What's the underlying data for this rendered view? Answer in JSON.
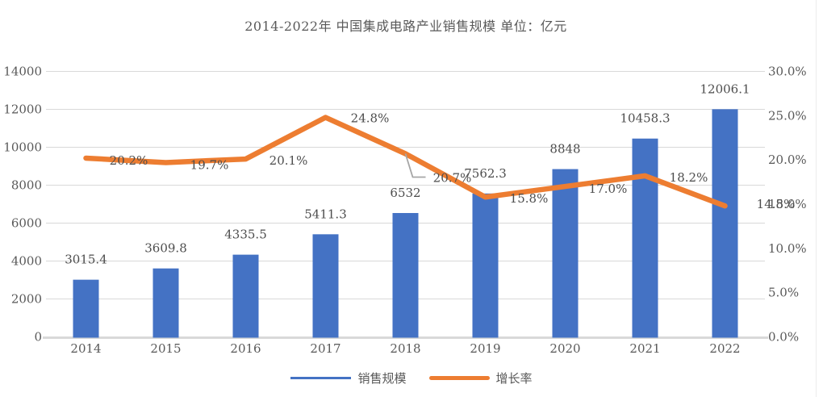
{
  "title": "2014-2022年 中国集成电路产业销售规模 单位：亿元",
  "legend": {
    "items": [
      {
        "label": "销售规模",
        "color": "#4472C4",
        "marker": "thin-line"
      },
      {
        "label": "增长率",
        "color": "#ED7D31",
        "marker": "thick-line"
      }
    ],
    "position": "bottom"
  },
  "colors": {
    "bar": "#4472C4",
    "line": "#ED7D31",
    "grid": "#d9d9d9",
    "axis_line": "#d9d9d9",
    "axis_text": "#595959",
    "data_label_text": "#4d4d4d",
    "leader_line": "#a6a6a6",
    "background": "#ffffff"
  },
  "chart_data": {
    "type": "bar+line combo",
    "title": "2014-2022年 中国集成电路产业销售规模 单位：亿元",
    "categories": [
      "2014",
      "2015",
      "2016",
      "2017",
      "2018",
      "2019",
      "2020",
      "2021",
      "2022"
    ],
    "series": [
      {
        "name": "销售规模",
        "type": "bar",
        "axis": "left",
        "color": "#4472C4",
        "values": [
          3015.4,
          3609.8,
          4335.5,
          5411.3,
          6532,
          7562.3,
          8848,
          10458.3,
          12006.1
        ],
        "labels": [
          "3015.4",
          "3609.8",
          "4335.5",
          "5411.3",
          "6532",
          "7562.3",
          "8848",
          "10458.3",
          "12006.1"
        ]
      },
      {
        "name": "增长率",
        "type": "line",
        "axis": "right",
        "color": "#ED7D31",
        "values": [
          20.2,
          19.7,
          20.1,
          24.8,
          20.7,
          15.8,
          17.0,
          18.2,
          14.8
        ],
        "labels": [
          "20.2%",
          "19.7%",
          "20.1%",
          "24.8%",
          "20.7%",
          "15.8%",
          "17.0%",
          "18.2%",
          "14.8%"
        ]
      }
    ],
    "left_axis": {
      "min": 0,
      "max": 14000,
      "step": 2000,
      "ticks": [
        "0",
        "2000",
        "4000",
        "6000",
        "8000",
        "10000",
        "12000",
        "14000"
      ]
    },
    "right_axis": {
      "min": 0,
      "max": 30,
      "step": 5,
      "ticks": [
        "0.0%",
        "5.0%",
        "10.0%",
        "15.0%",
        "20.0%",
        "25.0%",
        "30.0%"
      ]
    },
    "grid": true,
    "legend_position": "bottom",
    "annotations": {
      "label_with_leader_line": "2018"
    }
  }
}
